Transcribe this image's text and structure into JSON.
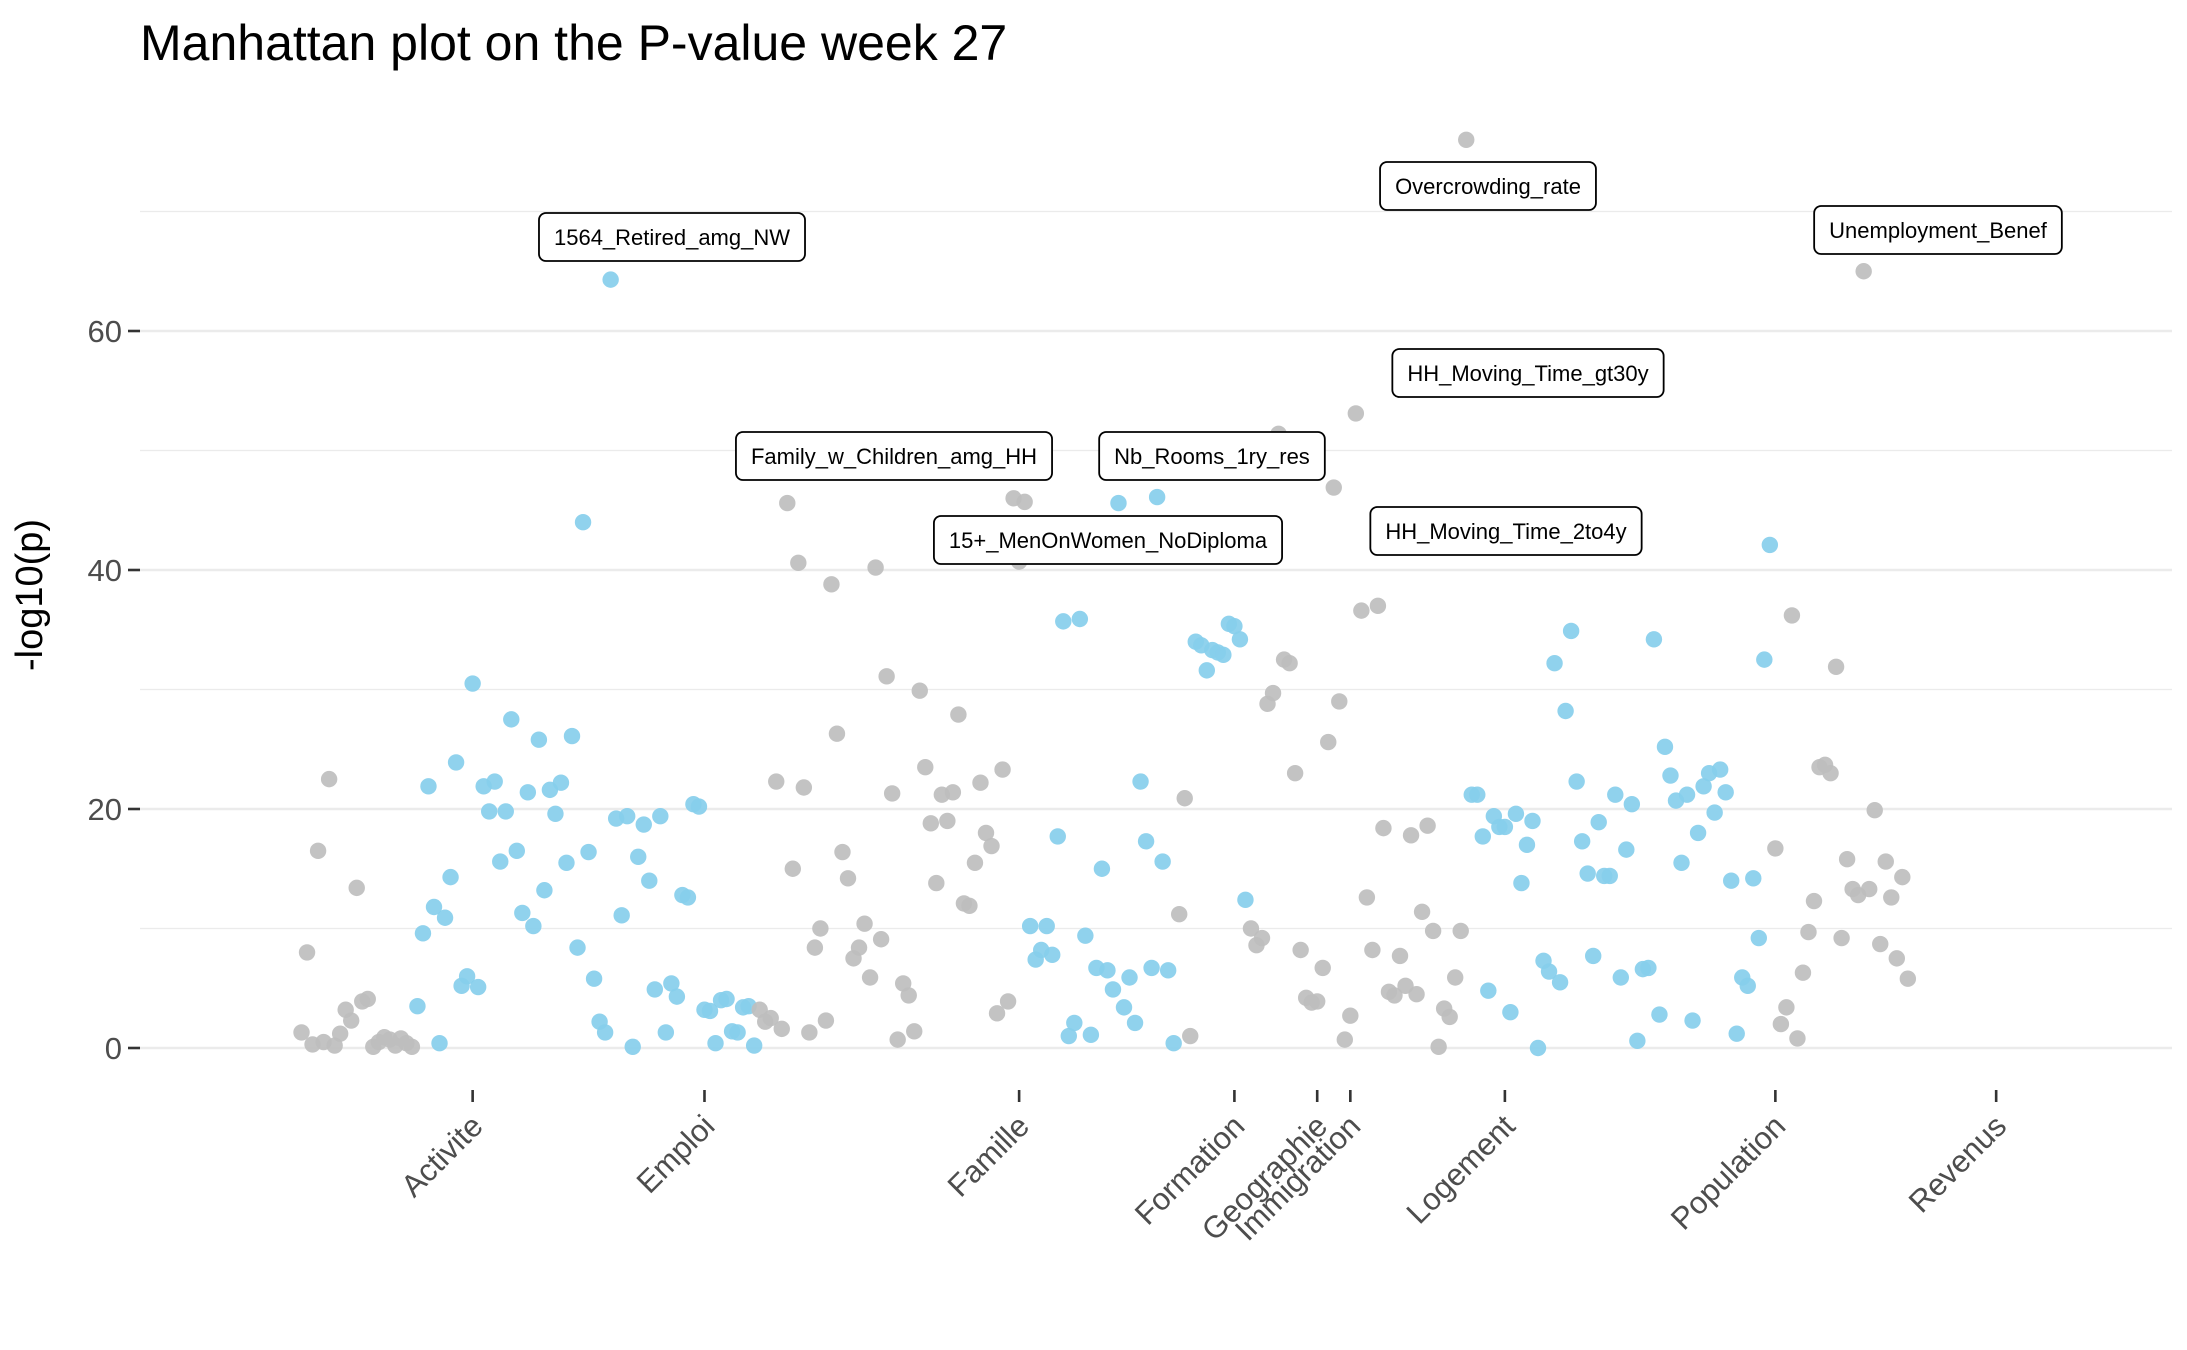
{
  "chart_data": {
    "type": "scatter",
    "title": "Manhattan plot on the P-value week 27",
    "ylabel": "-log10(p)",
    "xlabel": "",
    "ylim": [
      -4,
      80
    ],
    "yticks": [
      0,
      20,
      40,
      60
    ],
    "grid": true,
    "legend": "none",
    "colors": {
      "grey": "#bebebe",
      "blue": "#87ceeb"
    },
    "categories": [
      "Activite",
      "Emploi",
      "Famille",
      "Formation",
      "Geographie",
      "Immigration",
      "Logement",
      "Population",
      "Revenus"
    ],
    "category_ticks": [
      {
        "label": "Activite",
        "x": 22
      },
      {
        "label": "Emploi",
        "x": 64
      },
      {
        "label": "Famille",
        "x": 121
      },
      {
        "label": "Formation",
        "x": 160
      },
      {
        "label": "Geographie",
        "x": 175
      },
      {
        "label": "Immigration",
        "x": 181
      },
      {
        "label": "Logement",
        "x": 209
      },
      {
        "label": "Population",
        "x": 258
      },
      {
        "label": "Revenus",
        "x": 298
      }
    ],
    "x_range": [
      0,
      330
    ],
    "points": [
      [
        -9,
        1.3,
        0
      ],
      [
        -8,
        8,
        0
      ],
      [
        -7,
        0.3,
        0
      ],
      [
        -6,
        16.5,
        0
      ],
      [
        -5,
        0.5,
        0
      ],
      [
        -4,
        22.5,
        0
      ],
      [
        -3,
        0.2,
        0
      ],
      [
        -2,
        1.2,
        0
      ],
      [
        -1,
        3.2,
        0
      ],
      [
        0,
        2.3,
        0
      ],
      [
        1,
        13.4,
        0
      ],
      [
        2,
        3.9,
        0
      ],
      [
        3,
        4.1,
        0
      ],
      [
        4,
        0.1,
        0
      ],
      [
        5,
        0.5,
        0
      ],
      [
        6,
        0.9,
        0
      ],
      [
        7,
        0.7,
        0
      ],
      [
        8,
        0.2,
        0
      ],
      [
        9,
        0.8,
        0
      ],
      [
        10,
        0.4,
        0
      ],
      [
        11,
        0.1,
        0
      ],
      [
        12,
        3.5,
        1
      ],
      [
        13,
        9.6,
        1
      ],
      [
        14,
        21.9,
        1
      ],
      [
        15,
        11.8,
        1
      ],
      [
        16,
        0.4,
        1
      ],
      [
        17,
        10.9,
        1
      ],
      [
        18,
        14.3,
        1
      ],
      [
        19,
        23.9,
        1
      ],
      [
        20,
        5.2,
        1
      ],
      [
        21,
        6,
        1
      ],
      [
        22,
        30.5,
        1
      ],
      [
        23,
        5.1,
        1
      ],
      [
        24,
        21.9,
        1
      ],
      [
        25,
        19.8,
        1
      ],
      [
        26,
        22.3,
        1
      ],
      [
        27,
        15.6,
        1
      ],
      [
        28,
        19.8,
        1
      ],
      [
        29,
        27.5,
        1
      ],
      [
        30,
        16.5,
        1
      ],
      [
        31,
        11.3,
        1
      ],
      [
        32,
        21.4,
        1
      ],
      [
        33,
        10.2,
        1
      ],
      [
        34,
        25.8,
        1
      ],
      [
        35,
        13.2,
        1
      ],
      [
        36,
        21.6,
        1
      ],
      [
        37,
        19.6,
        1
      ],
      [
        38,
        22.2,
        1
      ],
      [
        39,
        15.5,
        1
      ],
      [
        40,
        26.1,
        1
      ],
      [
        41,
        8.4,
        1
      ],
      [
        42,
        44,
        1
      ],
      [
        43,
        16.4,
        1
      ],
      [
        44,
        5.8,
        1
      ],
      [
        45,
        2.2,
        1
      ],
      [
        46,
        1.3,
        1
      ],
      [
        47,
        64.3,
        1
      ],
      [
        48,
        19.2,
        1
      ],
      [
        49,
        11.1,
        1
      ],
      [
        50,
        19.4,
        1
      ],
      [
        51,
        0.1,
        1
      ],
      [
        52,
        16,
        1
      ],
      [
        53,
        18.7,
        1
      ],
      [
        54,
        14,
        1
      ],
      [
        55,
        4.9,
        1
      ],
      [
        56,
        19.4,
        1
      ],
      [
        57,
        1.3,
        1
      ],
      [
        58,
        5.4,
        1
      ],
      [
        59,
        4.3,
        1
      ],
      [
        60,
        12.8,
        1
      ],
      [
        61,
        12.6,
        1
      ],
      [
        62,
        20.4,
        1
      ],
      [
        63,
        20.2,
        1
      ],
      [
        64,
        3.2,
        1
      ],
      [
        65,
        3.1,
        1
      ],
      [
        66,
        0.4,
        1
      ],
      [
        67,
        4,
        1
      ],
      [
        68,
        4.1,
        1
      ],
      [
        69,
        1.4,
        1
      ],
      [
        70,
        1.3,
        1
      ],
      [
        71,
        3.4,
        1
      ],
      [
        72,
        3.5,
        1
      ],
      [
        73,
        0.2,
        1
      ],
      [
        74,
        3.2,
        0
      ],
      [
        75,
        2.2,
        0
      ],
      [
        76,
        2.5,
        0
      ],
      [
        77,
        22.3,
        0
      ],
      [
        78,
        1.6,
        0
      ],
      [
        79,
        45.6,
        0
      ],
      [
        80,
        15,
        0
      ],
      [
        81,
        40.6,
        0
      ],
      [
        82,
        21.8,
        0
      ],
      [
        83,
        1.3,
        0
      ],
      [
        84,
        8.4,
        0
      ],
      [
        85,
        10,
        0
      ],
      [
        86,
        2.3,
        0
      ],
      [
        87,
        38.8,
        0
      ],
      [
        88,
        26.3,
        0
      ],
      [
        89,
        16.4,
        0
      ],
      [
        90,
        14.2,
        0
      ],
      [
        91,
        7.5,
        0
      ],
      [
        92,
        8.4,
        0
      ],
      [
        93,
        10.4,
        0
      ],
      [
        94,
        5.9,
        0
      ],
      [
        95,
        40.2,
        0
      ],
      [
        96,
        9.1,
        0
      ],
      [
        97,
        31.1,
        0
      ],
      [
        98,
        21.3,
        0
      ],
      [
        99,
        0.7,
        0
      ],
      [
        100,
        5.4,
        0
      ],
      [
        101,
        4.4,
        0
      ],
      [
        102,
        1.4,
        0
      ],
      [
        103,
        29.9,
        0
      ],
      [
        104,
        23.5,
        0
      ],
      [
        105,
        18.8,
        0
      ],
      [
        106,
        13.8,
        0
      ],
      [
        107,
        21.2,
        0
      ],
      [
        108,
        19,
        0
      ],
      [
        109,
        21.4,
        0
      ],
      [
        110,
        27.9,
        0
      ],
      [
        111,
        12.1,
        0
      ],
      [
        112,
        11.9,
        0
      ],
      [
        113,
        15.5,
        0
      ],
      [
        114,
        22.2,
        0
      ],
      [
        115,
        18,
        0
      ],
      [
        116,
        16.9,
        0
      ],
      [
        117,
        2.9,
        0
      ],
      [
        118,
        23.3,
        0
      ],
      [
        119,
        3.9,
        0
      ],
      [
        120,
        46,
        0
      ],
      [
        121,
        40.7,
        0
      ],
      [
        122,
        45.7,
        0
      ],
      [
        123,
        10.2,
        1
      ],
      [
        124,
        7.4,
        1
      ],
      [
        125,
        8.2,
        1
      ],
      [
        126,
        10.2,
        1
      ],
      [
        127,
        7.8,
        1
      ],
      [
        128,
        17.7,
        1
      ],
      [
        129,
        35.7,
        1
      ],
      [
        130,
        1,
        1
      ],
      [
        131,
        2.1,
        1
      ],
      [
        132,
        35.9,
        1
      ],
      [
        133,
        9.4,
        1
      ],
      [
        134,
        1.1,
        1
      ],
      [
        135,
        6.7,
        1
      ],
      [
        136,
        15,
        1
      ],
      [
        137,
        6.5,
        1
      ],
      [
        138,
        4.9,
        1
      ],
      [
        139,
        45.6,
        1
      ],
      [
        140,
        3.4,
        1
      ],
      [
        141,
        5.9,
        1
      ],
      [
        142,
        2.1,
        1
      ],
      [
        143,
        22.3,
        1
      ],
      [
        144,
        17.3,
        1
      ],
      [
        145,
        6.7,
        1
      ],
      [
        146,
        46.1,
        1
      ],
      [
        147,
        15.6,
        1
      ],
      [
        148,
        6.5,
        1
      ],
      [
        149,
        0.4,
        1
      ],
      [
        150,
        11.2,
        0
      ],
      [
        151,
        20.9,
        0
      ],
      [
        152,
        1,
        0
      ],
      [
        153,
        34,
        1
      ],
      [
        154,
        33.7,
        1
      ],
      [
        155,
        31.6,
        1
      ],
      [
        156,
        33.3,
        1
      ],
      [
        157,
        33.1,
        1
      ],
      [
        158,
        32.9,
        1
      ],
      [
        159,
        35.5,
        1
      ],
      [
        160,
        35.3,
        1
      ],
      [
        161,
        34.2,
        1
      ],
      [
        162,
        12.4,
        1
      ],
      [
        163,
        10,
        0
      ],
      [
        164,
        8.6,
        0
      ],
      [
        165,
        9.2,
        0
      ],
      [
        166,
        28.8,
        0
      ],
      [
        167,
        29.7,
        0
      ],
      [
        168,
        51.4,
        0
      ],
      [
        169,
        32.5,
        0
      ],
      [
        170,
        32.2,
        0
      ],
      [
        171,
        23,
        0
      ],
      [
        172,
        8.2,
        0
      ],
      [
        173,
        4.2,
        0
      ],
      [
        174,
        3.8,
        0
      ],
      [
        175,
        3.9,
        0
      ],
      [
        176,
        6.7,
        0
      ],
      [
        177,
        25.6,
        0
      ],
      [
        178,
        46.9,
        0
      ],
      [
        179,
        29,
        0
      ],
      [
        180,
        0.7,
        0
      ],
      [
        181,
        2.7,
        0
      ],
      [
        182,
        53.1,
        0
      ],
      [
        183,
        36.6,
        0
      ],
      [
        184,
        12.6,
        0
      ],
      [
        185,
        8.2,
        0
      ],
      [
        186,
        37,
        0
      ],
      [
        187,
        18.4,
        0
      ],
      [
        188,
        4.7,
        0
      ],
      [
        189,
        4.4,
        0
      ],
      [
        190,
        7.7,
        0
      ],
      [
        191,
        5.2,
        0
      ],
      [
        192,
        17.8,
        0
      ],
      [
        193,
        4.5,
        0
      ],
      [
        194,
        11.4,
        0
      ],
      [
        195,
        18.6,
        0
      ],
      [
        196,
        9.8,
        0
      ],
      [
        197,
        0.1,
        0
      ],
      [
        198,
        3.3,
        0
      ],
      [
        199,
        2.6,
        0
      ],
      [
        200,
        5.9,
        0
      ],
      [
        201,
        9.8,
        0
      ],
      [
        202,
        76,
        0
      ],
      [
        203,
        21.2,
        1
      ],
      [
        204,
        21.2,
        1
      ],
      [
        205,
        17.7,
        1
      ],
      [
        206,
        4.8,
        1
      ],
      [
        207,
        19.4,
        1
      ],
      [
        208,
        18.5,
        1
      ],
      [
        209,
        18.5,
        1
      ],
      [
        210,
        3,
        1
      ],
      [
        211,
        19.6,
        1
      ],
      [
        212,
        13.8,
        1
      ],
      [
        213,
        17,
        1
      ],
      [
        214,
        19,
        1
      ],
      [
        215,
        0,
        1
      ],
      [
        216,
        7.3,
        1
      ],
      [
        217,
        6.4,
        1
      ],
      [
        218,
        32.2,
        1
      ],
      [
        219,
        5.5,
        1
      ],
      [
        220,
        28.2,
        1
      ],
      [
        221,
        34.9,
        1
      ],
      [
        222,
        22.3,
        1
      ],
      [
        223,
        17.3,
        1
      ],
      [
        224,
        14.6,
        1
      ],
      [
        225,
        7.7,
        1
      ],
      [
        226,
        18.9,
        1
      ],
      [
        227,
        14.4,
        1
      ],
      [
        228,
        14.4,
        1
      ],
      [
        229,
        21.2,
        1
      ],
      [
        230,
        5.9,
        1
      ],
      [
        231,
        16.6,
        1
      ],
      [
        232,
        20.4,
        1
      ],
      [
        233,
        0.6,
        1
      ],
      [
        234,
        6.6,
        1
      ],
      [
        235,
        6.7,
        1
      ],
      [
        236,
        34.2,
        1
      ],
      [
        237,
        2.8,
        1
      ],
      [
        238,
        25.2,
        1
      ],
      [
        239,
        22.8,
        1
      ],
      [
        240,
        20.7,
        1
      ],
      [
        241,
        15.5,
        1
      ],
      [
        242,
        21.2,
        1
      ],
      [
        243,
        2.3,
        1
      ],
      [
        244,
        18,
        1
      ],
      [
        245,
        21.9,
        1
      ],
      [
        246,
        23,
        1
      ],
      [
        247,
        19.7,
        1
      ],
      [
        248,
        23.3,
        1
      ],
      [
        249,
        21.4,
        1
      ],
      [
        250,
        14,
        1
      ],
      [
        251,
        1.2,
        1
      ],
      [
        252,
        5.9,
        1
      ],
      [
        253,
        5.2,
        1
      ],
      [
        254,
        14.2,
        1
      ],
      [
        255,
        9.2,
        1
      ],
      [
        256,
        32.5,
        1
      ],
      [
        257,
        42.1,
        1
      ],
      [
        258,
        16.7,
        0
      ],
      [
        259,
        2,
        0
      ],
      [
        260,
        3.4,
        0
      ],
      [
        261,
        36.2,
        0
      ],
      [
        262,
        0.8,
        0
      ],
      [
        263,
        6.3,
        0
      ],
      [
        264,
        9.7,
        0
      ],
      [
        265,
        12.3,
        0
      ],
      [
        266,
        23.5,
        0
      ],
      [
        267,
        23.7,
        0
      ],
      [
        268,
        23,
        0
      ],
      [
        269,
        31.9,
        0
      ],
      [
        270,
        9.2,
        0
      ],
      [
        271,
        15.8,
        0
      ],
      [
        272,
        13.3,
        0
      ],
      [
        273,
        12.8,
        0
      ],
      [
        274,
        65,
        0
      ],
      [
        275,
        13.3,
        0
      ],
      [
        276,
        19.9,
        0
      ],
      [
        277,
        8.7,
        0
      ],
      [
        278,
        15.6,
        0
      ],
      [
        279,
        12.6,
        0
      ],
      [
        280,
        7.5,
        0
      ],
      [
        281,
        14.3,
        0
      ],
      [
        282,
        5.8,
        0
      ]
    ],
    "annotations": [
      {
        "label": "1564_Retired_amg_NW",
        "x": 47,
        "y": 64.3
      },
      {
        "label": "Family_w_Children_amg_HH",
        "x": 79,
        "y": 45.6
      },
      {
        "label": "Nb_Rooms_1ry_res",
        "x": 146,
        "y": 46.1
      },
      {
        "label": "15+_MenOnWomen_NoDiploma",
        "x": 121,
        "y": 40.7
      },
      {
        "label": "Overcrowding_rate",
        "x": 202,
        "y": 76
      },
      {
        "label": "HH_Moving_Time_gt30y",
        "x": 182,
        "y": 53.1
      },
      {
        "label": "HH_Moving_Time_2to4y",
        "x": 178,
        "y": 46.9
      },
      {
        "label": "Unemployment_Benef",
        "x": 274,
        "y": 65
      }
    ]
  }
}
